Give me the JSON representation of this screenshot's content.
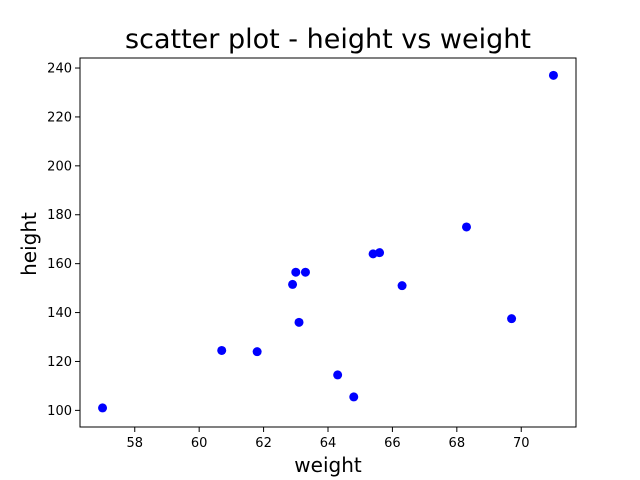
{
  "chart_data": {
    "type": "scatter",
    "title": "scatter plot - height vs weight",
    "xlabel": "weight",
    "ylabel": "height",
    "xlim": [
      56.3,
      71.7
    ],
    "ylim": [
      93.2,
      244.1
    ],
    "xticks": [
      58,
      60,
      62,
      64,
      66,
      68,
      70
    ],
    "yticks": [
      100,
      120,
      140,
      160,
      180,
      200,
      220,
      240
    ],
    "grid": false,
    "color": "#0000ff",
    "points": [
      {
        "x": 57.0,
        "y": 101
      },
      {
        "x": 60.7,
        "y": 124.5
      },
      {
        "x": 61.8,
        "y": 124
      },
      {
        "x": 62.9,
        "y": 151.5
      },
      {
        "x": 63.0,
        "y": 156.5
      },
      {
        "x": 63.1,
        "y": 136
      },
      {
        "x": 63.3,
        "y": 156.5
      },
      {
        "x": 64.3,
        "y": 114.5
      },
      {
        "x": 64.8,
        "y": 105.5
      },
      {
        "x": 65.4,
        "y": 164
      },
      {
        "x": 65.6,
        "y": 164.5
      },
      {
        "x": 66.3,
        "y": 151
      },
      {
        "x": 68.3,
        "y": 175
      },
      {
        "x": 69.7,
        "y": 137.5
      },
      {
        "x": 71.0,
        "y": 237
      }
    ]
  }
}
